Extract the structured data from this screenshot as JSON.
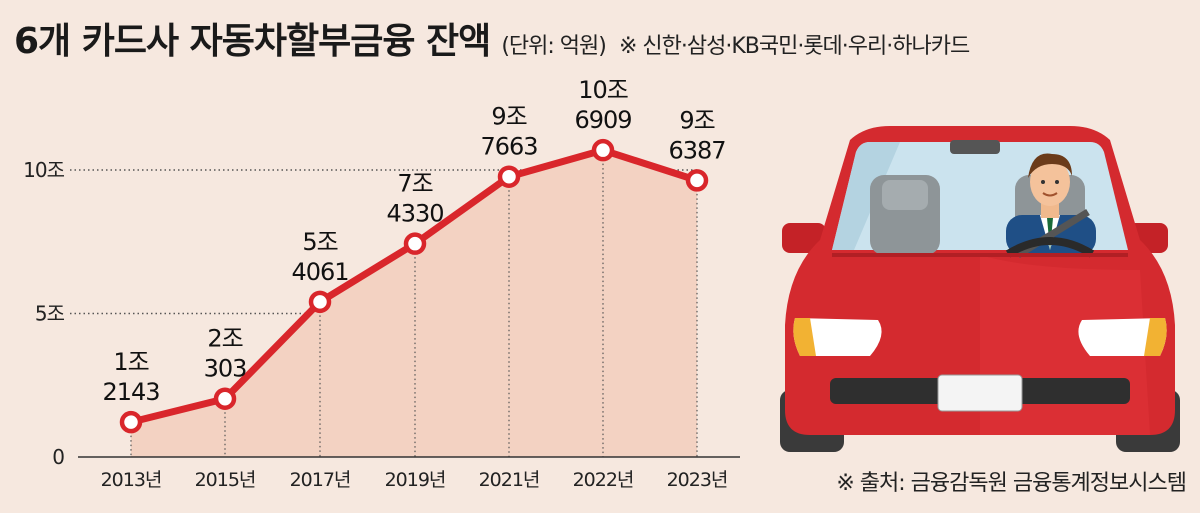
{
  "header": {
    "title": "6개 카드사 자동차할부금융 잔액",
    "unit": "(단위: 억원)",
    "note": "※ 신한·삼성·KB국민·롯데·우리·하나카드"
  },
  "footer": {
    "source": "※ 출처: 금융감독원 금융통계정보시스템"
  },
  "colors": {
    "line": "#d9262b",
    "fill": "#f3d2c2",
    "background": "#f6e8df",
    "car": "#d42a2f"
  },
  "chart_data": {
    "type": "line",
    "categories": [
      "2013년",
      "2015년",
      "2017년",
      "2019년",
      "2021년",
      "2022년",
      "2023년"
    ],
    "values": [
      12143,
      20303,
      54061,
      74330,
      97663,
      106909,
      96387
    ],
    "labels": [
      [
        "1조",
        "2143"
      ],
      [
        "2조",
        "303"
      ],
      [
        "5조",
        "4061"
      ],
      [
        "7조",
        "4330"
      ],
      [
        "9조",
        "7663"
      ],
      [
        "10조",
        "6909"
      ],
      [
        "9조",
        "6387"
      ]
    ],
    "yticks": [
      {
        "value": 0,
        "label": "0"
      },
      {
        "value": 50000,
        "label": "5조"
      },
      {
        "value": 100000,
        "label": "10조"
      }
    ],
    "ylim": [
      0,
      100000
    ],
    "grid": "dotted at 5조 and 10조",
    "title": "6개 카드사 자동차할부금융 잔액"
  },
  "illustration": {
    "icon": "red-car-with-driver-icon"
  }
}
